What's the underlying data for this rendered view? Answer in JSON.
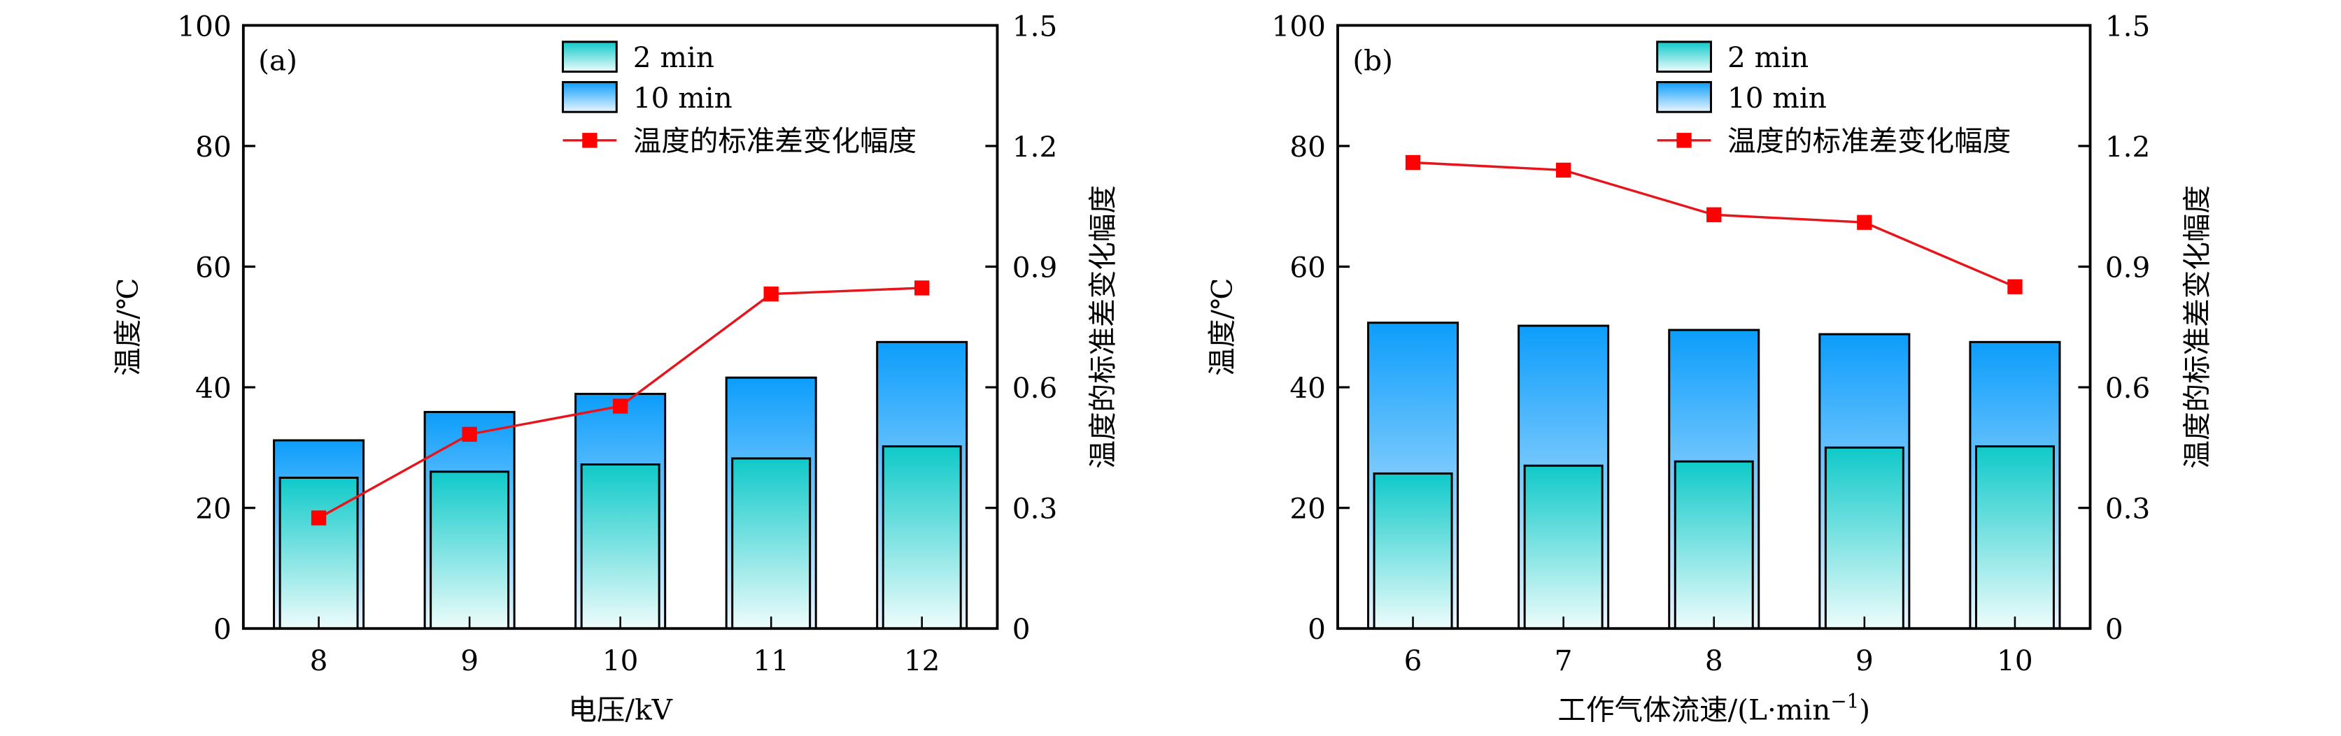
{
  "chart_data": [
    {
      "type": "bar",
      "panel_label": "(a)",
      "categories": [
        "8",
        "9",
        "10",
        "11",
        "12"
      ],
      "xlabel": "电压/kV",
      "ylabel": "温度/℃",
      "ylabel_right": "温度的标准差变化幅度",
      "ylim": [
        0,
        100
      ],
      "yticks": [
        "0",
        "20",
        "40",
        "60",
        "80",
        "100"
      ],
      "ylim_right": [
        0,
        1.5
      ],
      "yticks_right": [
        "0",
        "0.3",
        "0.6",
        "0.9",
        "1.2",
        "1.5"
      ],
      "legend_position": "top-right",
      "series": [
        {
          "name": "2 min",
          "kind": "bar",
          "axis": "left",
          "values": [
            25.0,
            26.0,
            27.2,
            28.2,
            30.2
          ],
          "color_top": "#0fc9c9",
          "color_bottom": "#e9fbfb"
        },
        {
          "name": "10 min",
          "kind": "bar",
          "axis": "left",
          "values": [
            31.2,
            35.9,
            38.9,
            41.6,
            47.5
          ],
          "color_top": "#0c9dfb",
          "color_bottom": "#e6f4ff"
        },
        {
          "name": "温度的标准差变化幅度",
          "kind": "line",
          "axis": "right",
          "values": [
            0.275,
            0.483,
            0.553,
            0.832,
            0.847
          ],
          "color": "#e8141b"
        }
      ]
    },
    {
      "type": "bar",
      "panel_label": "(b)",
      "categories": [
        "6",
        "7",
        "8",
        "9",
        "10"
      ],
      "xlabel": "工作气体流速/(L·min",
      "xlabel_sup": "−1",
      "xlabel_end": ")",
      "ylabel": "温度/℃",
      "ylabel_right": "温度的标准差变化幅度",
      "ylim": [
        0,
        100
      ],
      "yticks": [
        "0",
        "20",
        "40",
        "60",
        "80",
        "100"
      ],
      "ylim_right": [
        0,
        1.5
      ],
      "yticks_right": [
        "0",
        "0.3",
        "0.6",
        "0.9",
        "1.2",
        "1.5"
      ],
      "legend_position": "top-right",
      "series": [
        {
          "name": "2 min",
          "kind": "bar",
          "axis": "left",
          "values": [
            25.7,
            27.0,
            27.7,
            30.0,
            30.2
          ],
          "color_top": "#0fc9c9",
          "color_bottom": "#e9fbfb"
        },
        {
          "name": "10 min",
          "kind": "bar",
          "axis": "left",
          "values": [
            50.7,
            50.2,
            49.5,
            48.8,
            47.5
          ],
          "color_top": "#0c9dfb",
          "color_bottom": "#e6f4ff"
        },
        {
          "name": "温度的标准差变化幅度",
          "kind": "line",
          "axis": "right",
          "values": [
            1.159,
            1.14,
            1.029,
            1.01,
            0.85
          ],
          "color": "#e8141b"
        }
      ]
    }
  ]
}
